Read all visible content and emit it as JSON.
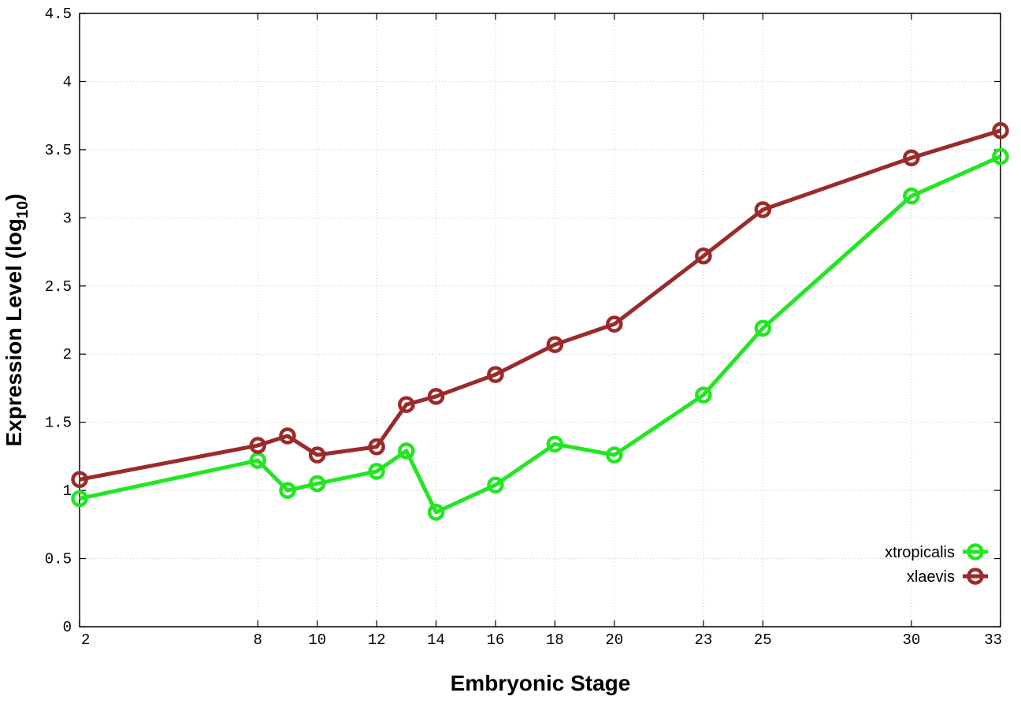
{
  "chart_data": {
    "type": "line",
    "title": "",
    "xlabel": "Embryonic Stage",
    "ylabel": "Expression Level (log",
    "ylabel_subscript": "10",
    "ylabel_close": ")",
    "x": [
      2,
      8,
      9,
      10,
      12,
      13,
      14,
      16,
      18,
      20,
      23,
      25,
      30,
      33
    ],
    "x_ticks": [
      2,
      8,
      10,
      12,
      14,
      16,
      18,
      20,
      23,
      25,
      30,
      33
    ],
    "x_tick_labels": [
      "2",
      "8",
      "10",
      "12",
      "14",
      "16",
      "18",
      "20",
      "23",
      "25",
      "30",
      "33"
    ],
    "y_ticks": [
      0,
      0.5,
      1,
      1.5,
      2,
      2.5,
      3,
      3.5,
      4,
      4.5
    ],
    "y_tick_labels": [
      "0",
      "0.5",
      "1",
      "1.5",
      "2",
      "2.5",
      "3",
      "3.5",
      "4",
      "4.5"
    ],
    "xlim": [
      2,
      33
    ],
    "ylim": [
      0,
      4.5
    ],
    "grid": true,
    "legend_position": "bottom-right",
    "series": [
      {
        "name": "xtropicalis",
        "color": "#22e622",
        "values": [
          0.94,
          1.22,
          1.0,
          1.05,
          1.14,
          1.29,
          0.84,
          1.04,
          1.34,
          1.26,
          1.7,
          2.19,
          3.16,
          3.45
        ]
      },
      {
        "name": "xlaevis",
        "color": "#9b2a2a",
        "values": [
          1.08,
          1.33,
          1.4,
          1.26,
          1.32,
          1.63,
          1.69,
          1.85,
          2.07,
          2.22,
          2.72,
          3.06,
          3.44,
          3.64
        ]
      }
    ]
  }
}
